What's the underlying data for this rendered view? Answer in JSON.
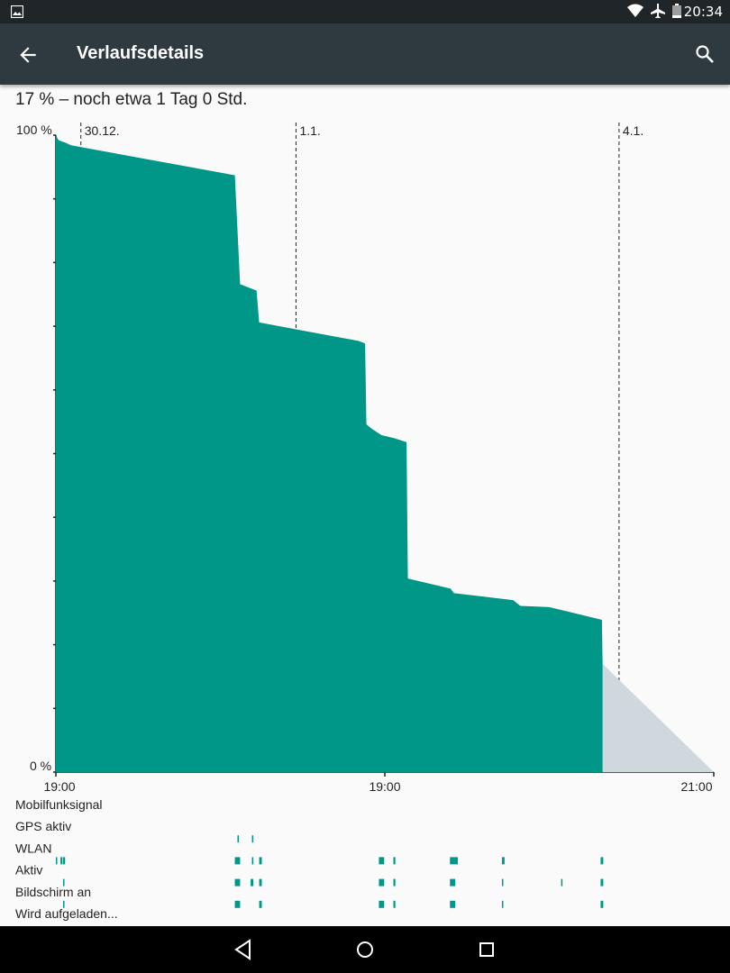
{
  "status_bar": {
    "time": "20:34",
    "icons": [
      "image-icon",
      "wifi-icon",
      "airplane-icon",
      "battery-icon"
    ]
  },
  "app_bar": {
    "title": "Verlaufsdetails",
    "back_icon": "arrow-back-icon",
    "search_icon": "search-icon"
  },
  "summary": {
    "text": "17 % – noch etwa 1 Tag 0 Std."
  },
  "chart_data": {
    "type": "area",
    "title": "",
    "y_labels": {
      "top": "100 %",
      "bottom": "0 %"
    },
    "x_labels": {
      "start": "19:00",
      "middle": "19:00",
      "end": "21:00"
    },
    "date_markers": [
      {
        "label": "30.12.",
        "t": 0.038
      },
      {
        "label": "1.1.",
        "t": 0.365
      },
      {
        "label": "4.1.",
        "t": 0.856
      }
    ],
    "series": [
      {
        "name": "",
        "t": [
          0.0,
          0.004,
          0.015,
          0.023,
          0.272,
          0.28,
          0.305,
          0.309,
          0.35,
          0.46,
          0.47,
          0.472,
          0.48,
          0.495,
          0.515,
          0.533,
          0.535,
          0.6,
          0.605,
          0.695,
          0.706,
          0.75,
          0.83,
          0.831
        ],
        "values": [
          100,
          99.2,
          98.8,
          98.4,
          93.7,
          76.6,
          75.6,
          70.6,
          69.8,
          67.7,
          67.3,
          54.6,
          53.9,
          52.9,
          52.4,
          51.8,
          30.4,
          28.8,
          28.1,
          27.0,
          26.1,
          25.9,
          23.9,
          17
        ]
      }
    ],
    "projection": {
      "t_start": 0.831,
      "t_end": 1.0,
      "value_start": 17,
      "value_end": 0
    },
    "yticks": [
      0,
      10,
      20,
      30,
      40,
      50,
      60,
      70,
      80,
      90,
      100
    ],
    "colors": {
      "fill": "#009688",
      "projection": "#cfd8dc"
    }
  },
  "signals": {
    "rows": [
      {
        "label": "Mobilfunksignal",
        "segments": []
      },
      {
        "label": "GPS aktiv",
        "segments": [
          [
            0.276,
            0.002
          ],
          [
            0.298,
            0.002
          ]
        ]
      },
      {
        "label": "WLAN",
        "segments": [
          [
            0.0,
            0.002
          ],
          [
            0.007,
            0.003
          ],
          [
            0.011,
            0.003
          ],
          [
            0.272,
            0.008
          ],
          [
            0.298,
            0.002
          ],
          [
            0.309,
            0.004
          ],
          [
            0.491,
            0.008
          ],
          [
            0.513,
            0.003
          ],
          [
            0.599,
            0.012
          ],
          [
            0.678,
            0.004
          ],
          [
            0.828,
            0.004
          ]
        ]
      },
      {
        "label": "Aktiv",
        "segments": [
          [
            0.011,
            0.002
          ],
          [
            0.272,
            0.008
          ],
          [
            0.296,
            0.004
          ],
          [
            0.309,
            0.004
          ],
          [
            0.491,
            0.008
          ],
          [
            0.513,
            0.003
          ],
          [
            0.599,
            0.008
          ],
          [
            0.678,
            0.002
          ],
          [
            0.768,
            0.002
          ],
          [
            0.828,
            0.004
          ]
        ]
      },
      {
        "label": "Bildschirm an",
        "segments": [
          [
            0.011,
            0.002
          ],
          [
            0.272,
            0.008
          ],
          [
            0.309,
            0.004
          ],
          [
            0.491,
            0.008
          ],
          [
            0.513,
            0.003
          ],
          [
            0.599,
            0.008
          ],
          [
            0.678,
            0.002
          ],
          [
            0.828,
            0.004
          ]
        ]
      },
      {
        "label": "Wird aufgeladen...",
        "segments": []
      }
    ]
  },
  "nav_bar": {
    "buttons": [
      "nav-back-icon",
      "nav-home-icon",
      "nav-recents-icon"
    ]
  }
}
